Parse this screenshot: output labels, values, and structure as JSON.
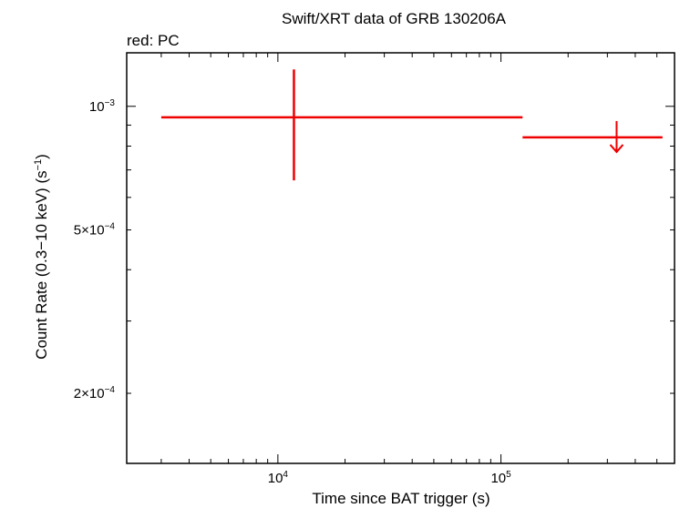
{
  "chart_data": {
    "type": "scatter",
    "title": "Swift/XRT data of GRB 130206A",
    "subtitle": "red: PC",
    "xlabel": "Time since BAT trigger (s)",
    "ylabel_parts": {
      "main": "Count Rate (0.3−10 keV) (s",
      "exp": "−1",
      "close": ")"
    },
    "x_scale": "log",
    "y_scale": "log",
    "xlim": [
      2100,
      600000
    ],
    "ylim": [
      0.000135,
      0.00135
    ],
    "x_ticks": [
      {
        "value": 10000,
        "base": "10",
        "exp": "4"
      },
      {
        "value": 100000,
        "base": "10",
        "exp": "5"
      }
    ],
    "y_ticks": [
      {
        "value": 0.001,
        "base": "10",
        "exp": "−3"
      },
      {
        "value": 0.0005,
        "base": "5×10",
        "exp": "−4"
      },
      {
        "value": 0.0002,
        "base": "2×10",
        "exp": "−4"
      }
    ],
    "color": "#ee0000",
    "series": [
      {
        "mode": "PC",
        "points": [
          {
            "x": 11800,
            "x_lo": 3000,
            "x_hi": 125000,
            "y": 0.00094,
            "y_lo": 0.00066,
            "y_hi": 0.00123,
            "upper_limit": false
          },
          {
            "x": 330000,
            "x_lo": 125000,
            "x_hi": 530000,
            "y": 0.00084,
            "upper_limit": true
          }
        ]
      }
    ]
  }
}
